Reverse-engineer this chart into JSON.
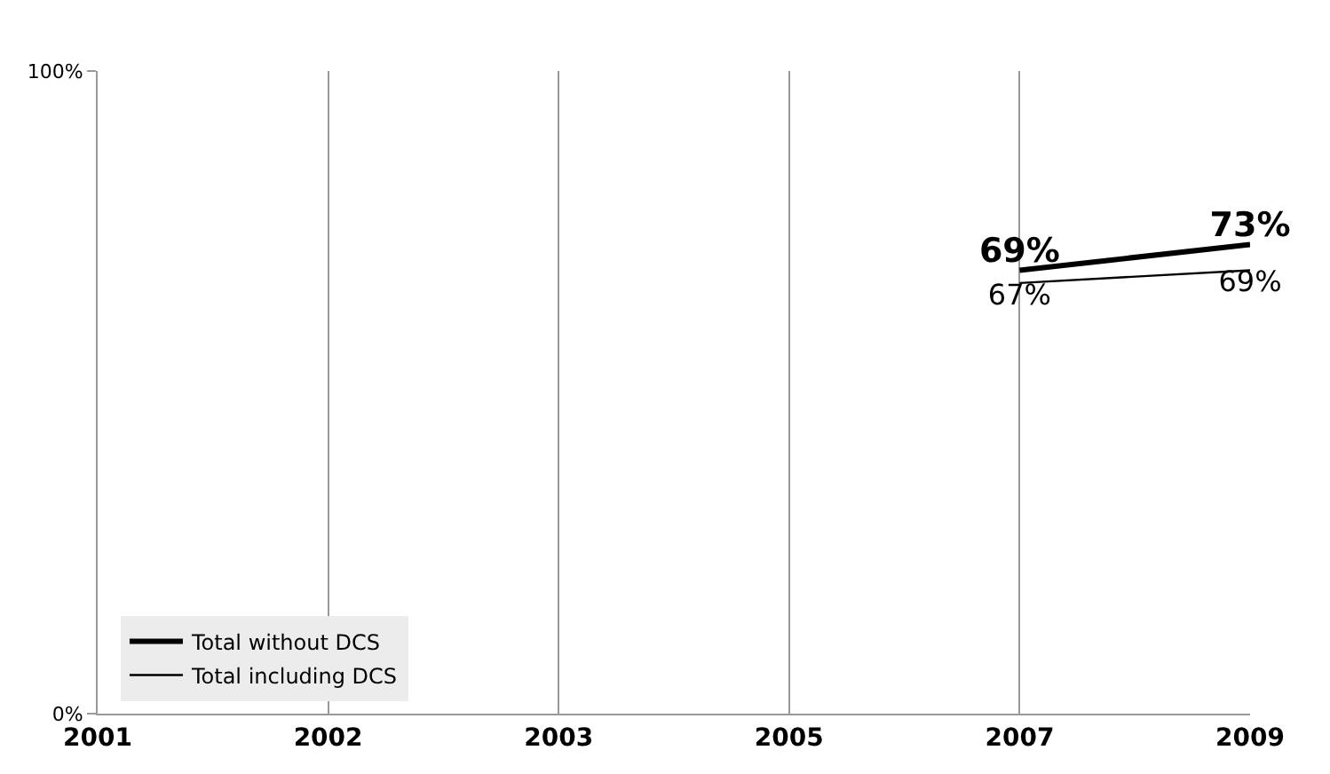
{
  "chart_data": {
    "type": "line",
    "categories": [
      "2001",
      "2002",
      "2003",
      "2005",
      "2007",
      "2009"
    ],
    "series": [
      {
        "name": "Total without DCS",
        "color": "#000000",
        "values": [
          null,
          null,
          null,
          null,
          69,
          73
        ],
        "value_labels": [
          null,
          null,
          null,
          null,
          "69%",
          "73%"
        ]
      },
      {
        "name": "Total including DCS",
        "color": "#000000",
        "values": [
          null,
          null,
          null,
          null,
          67,
          69
        ],
        "value_labels": [
          null,
          null,
          null,
          null,
          "67%",
          "69%"
        ]
      }
    ],
    "ylim": [
      0,
      100
    ],
    "yticks": [
      {
        "value": 0,
        "label": "0%"
      },
      {
        "value": 100,
        "label": "100%"
      }
    ],
    "grid": "x",
    "legend": "bottom left",
    "marker": "none",
    "line_style": "solid"
  }
}
